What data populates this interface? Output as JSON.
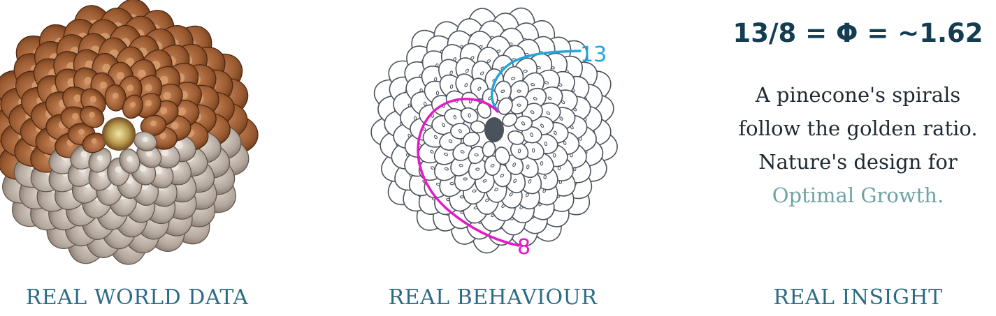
{
  "panels": [
    {
      "caption": "REAL WORLD DATA",
      "image": "pinecone-photo"
    },
    {
      "caption": "REAL BEHAVIOUR",
      "image": "pinecone-spiral-diagram",
      "spiral_labels": {
        "blue": "13",
        "magenta": "8"
      }
    },
    {
      "caption": "REAL INSIGHT"
    }
  ],
  "insight": {
    "equation": "13/8 = Φ = ~1.62",
    "lines": [
      "A pinecone's spirals",
      "follow the golden ratio.",
      "Nature's design for"
    ],
    "accent_line": "Optimal Growth."
  },
  "colors": {
    "caption": "#2c6b86",
    "equation": "#143d52",
    "accent": "#6ea3a6",
    "spiral_blue": "#1fa6e0",
    "spiral_magenta": "#e619c8",
    "sketch_line": "#4a525c"
  }
}
